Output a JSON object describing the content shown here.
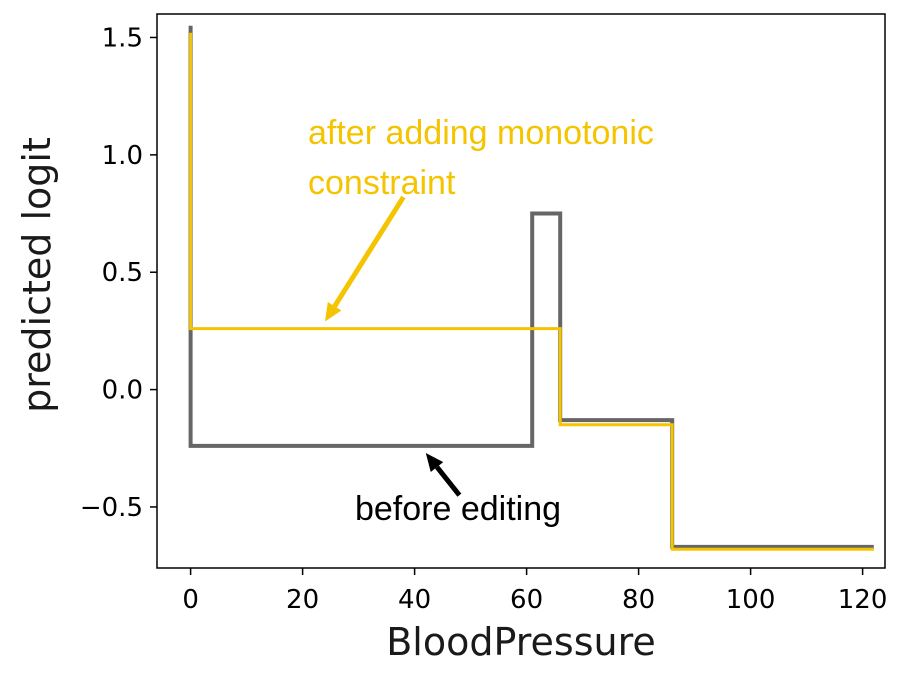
{
  "chart_data": {
    "type": "line",
    "xlabel": "BloodPressure",
    "ylabel": "predicted logit",
    "xlim": [
      -6,
      124
    ],
    "ylim": [
      -0.76,
      1.6
    ],
    "xticks": [
      0,
      20,
      40,
      60,
      80,
      100,
      120
    ],
    "yticks": [
      1.5,
      1.0,
      0.5,
      0.0,
      -0.5
    ],
    "ytick_labels": [
      "1.5",
      "1.0",
      "0.5",
      "0.0",
      "−0.5"
    ],
    "grid": false,
    "series": [
      {
        "color": "#666666",
        "step": true,
        "x": [
          0,
          0,
          61,
          61,
          66,
          66,
          86,
          86,
          122
        ],
        "y": [
          1.55,
          -0.24,
          -0.24,
          0.75,
          0.75,
          -0.13,
          -0.13,
          -0.67,
          -0.67
        ]
      },
      {
        "color": "#F5C400",
        "step": true,
        "x": [
          0,
          0,
          66,
          66,
          86,
          86,
          122
        ],
        "y": [
          1.52,
          0.26,
          0.26,
          -0.15,
          -0.15,
          -0.68,
          -0.68
        ]
      }
    ],
    "annotations": [
      {
        "text_lines": [
          "after adding monotonic",
          "constraint"
        ],
        "color": "#F5C400",
        "arrow_target": [
          24,
          0.29
        ],
        "arrow_from": [
          38,
          0.82
        ]
      },
      {
        "text_lines": [
          "before editing"
        ],
        "color": "#000000",
        "arrow_target": [
          42,
          -0.27
        ],
        "arrow_from": [
          48,
          -0.45
        ]
      }
    ]
  }
}
